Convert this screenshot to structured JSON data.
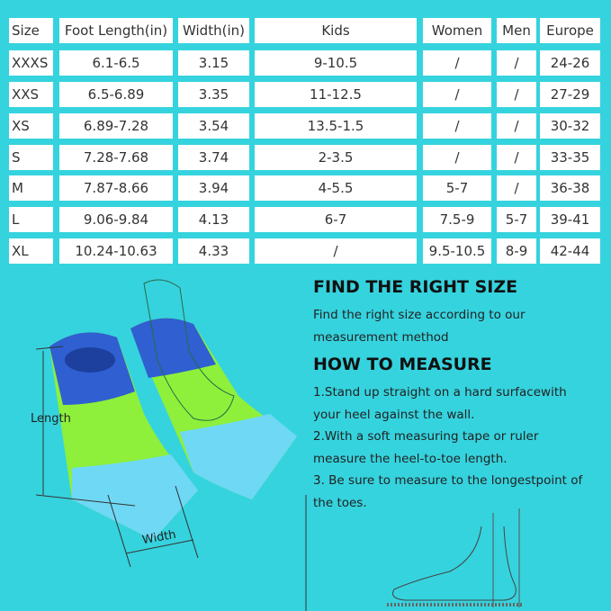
{
  "table": {
    "headers": [
      "Size",
      "Foot Length(in)",
      "Width(in)",
      "Kids",
      "Women",
      "Men",
      "Europe"
    ],
    "rows": [
      [
        "XXXS",
        "6.1-6.5",
        "3.15",
        "9-10.5",
        "/",
        "/",
        "24-26"
      ],
      [
        "XXS",
        "6.5-6.89",
        "3.35",
        "11-12.5",
        "/",
        "/",
        "27-29"
      ],
      [
        "XS",
        "6.89-7.28",
        "3.54",
        "13.5-1.5",
        "/",
        "/",
        "30-32"
      ],
      [
        "S",
        "7.28-7.68",
        "3.74",
        "2-3.5",
        "/",
        "/",
        "33-35"
      ],
      [
        "M",
        "7.87-8.66",
        "3.94",
        "4-5.5",
        "5-7",
        "/",
        "36-38"
      ],
      [
        "L",
        "9.06-9.84",
        "4.13",
        "6-7",
        "7.5-9",
        "5-7",
        "39-41"
      ],
      [
        "XL",
        "10.24-10.63",
        "4.33",
        "/",
        "9.5-10.5",
        "8-9",
        "42-44"
      ]
    ]
  },
  "find_size": {
    "title": "FIND THE RIGHT SIZE",
    "text": "Find the right size according to our measurement method"
  },
  "how_to": {
    "title": "HOW TO MEASURE",
    "steps": [
      "1.Stand up straight on a hard surfacewith your heel against the wall.",
      "2.With a soft measuring tape or ruler measure the heel-to-toe length.",
      "3. Be sure to measure to the longestpoint of the toes."
    ]
  },
  "diagram": {
    "length_label": "Length",
    "width_label": "Width"
  },
  "colors": {
    "background": "#35d3de",
    "fin_blue": "#2f5fd0",
    "fin_green": "#8ef03a",
    "fin_light": "#6fd8f5"
  }
}
